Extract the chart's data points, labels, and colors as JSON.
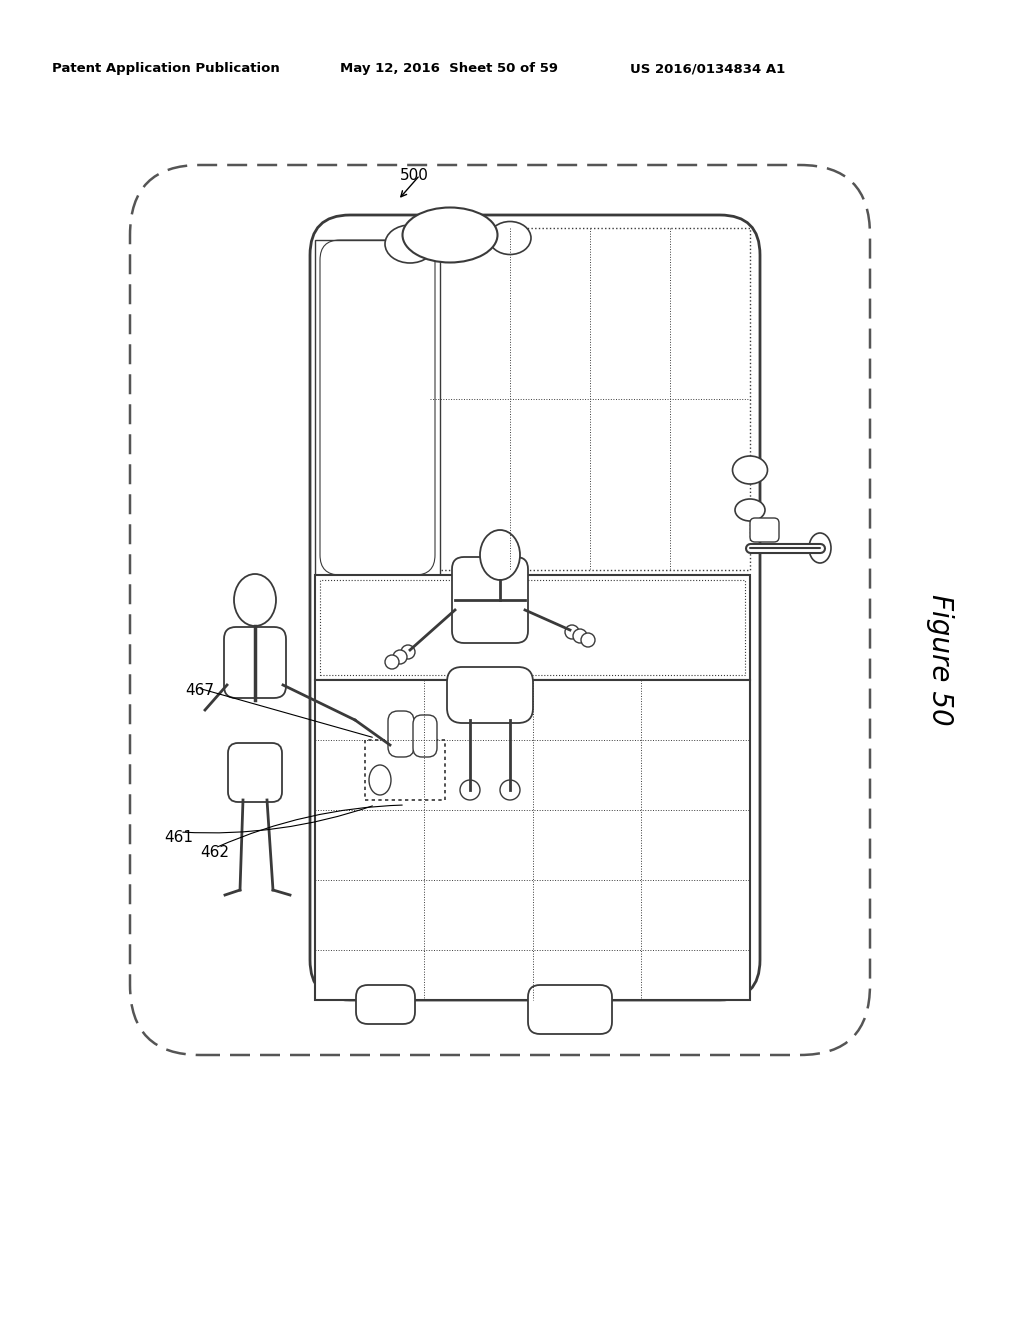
{
  "bg_color": "#ffffff",
  "header_left": "Patent Application Publication",
  "header_center": "May 12, 2016  Sheet 50 of 59",
  "header_right": "US 2016/0134834 A1",
  "figure_label": "Figure 50",
  "label_500": "500",
  "label_467": "467",
  "label_461": "461",
  "label_462": "462",
  "line_color": "#3a3a3a",
  "dashed_color": "#555555",
  "light_gray": "#aaaaaa"
}
